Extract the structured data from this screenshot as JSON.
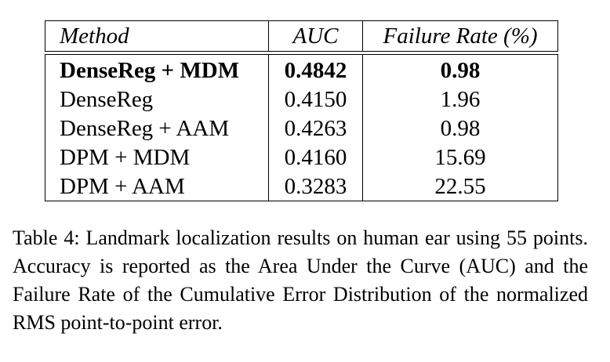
{
  "table": {
    "headers": {
      "method": "Method",
      "auc": "AUC",
      "failure_rate": "Failure Rate (%)"
    },
    "rows": [
      {
        "method": "DenseReg + MDM",
        "auc": "0.4842",
        "failure_rate": "0.98",
        "bold": true
      },
      {
        "method": "DenseReg",
        "auc": "0.4150",
        "failure_rate": "1.96",
        "bold": false
      },
      {
        "method": "DenseReg + AAM",
        "auc": "0.4263",
        "failure_rate": "0.98",
        "bold": false
      },
      {
        "method": "DPM + MDM",
        "auc": "0.4160",
        "failure_rate": "15.69",
        "bold": false
      },
      {
        "method": "DPM + AAM",
        "auc": "0.3283",
        "failure_rate": "22.55",
        "bold": false
      }
    ]
  },
  "caption": {
    "text": "Table 4: Landmark localization results on human ear using 55 points. Accuracy is reported as the Area Under the Curve (AUC) and the Failure Rate of the Cumulative Error Distribution of the normalized RMS point-to-point error."
  }
}
